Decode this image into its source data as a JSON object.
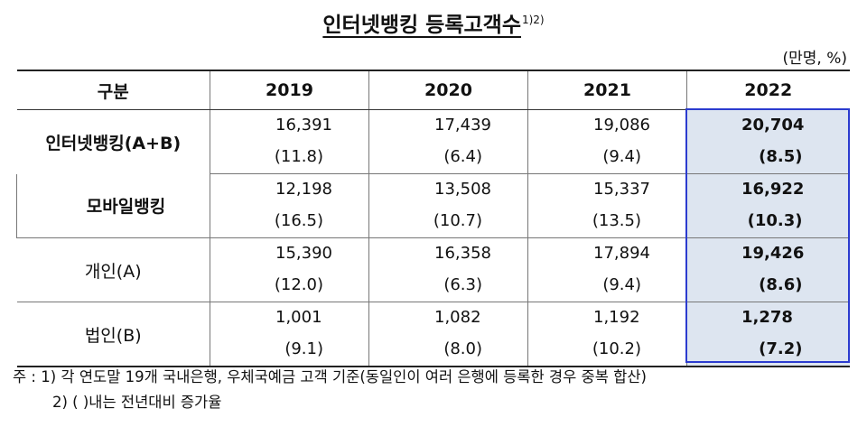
{
  "title": "인터넷뱅킹 등록고객수",
  "title_note": "1)2)",
  "unit": "(만명, %)",
  "header": [
    "구분",
    "2019",
    "2020",
    "2021",
    "2022"
  ],
  "rows": [
    {
      "label": "인터넷뱅킹(A+B)",
      "values": [
        {
          "count": "16,391",
          "rate": "(11.8)"
        },
        {
          "count": "17,439",
          "rate": "(6.4)"
        },
        {
          "count": "19,086",
          "rate": "(9.4)"
        },
        {
          "count": "20,704",
          "rate": "(8.5)"
        }
      ]
    },
    {
      "label": "모바일뱅킹",
      "values": [
        {
          "count": "12,198",
          "rate": "(16.5)"
        },
        {
          "count": "13,508",
          "rate": "(10.7)"
        },
        {
          "count": "15,337",
          "rate": "(13.5)"
        },
        {
          "count": "16,922",
          "rate": "(10.3)"
        }
      ]
    },
    {
      "label": "개인(A)",
      "values": [
        {
          "count": "15,390",
          "rate": "(12.0)"
        },
        {
          "count": "16,358",
          "rate": "(6.3)"
        },
        {
          "count": "17,894",
          "rate": "(9.4)"
        },
        {
          "count": "19,426",
          "rate": "(8.6)"
        }
      ]
    },
    {
      "label": "법인(B)",
      "values": [
        {
          "count": "1,001",
          "rate": "(9.1)"
        },
        {
          "count": "1,082",
          "rate": "(8.0)"
        },
        {
          "count": "1,192",
          "rate": "(10.2)"
        },
        {
          "count": "1,278",
          "rate": "(7.2)"
        }
      ]
    }
  ],
  "notes": [
    "주 : 1) 각 연도말 19개 국내은행, 우체국예금 고객 기준(동일인이 여러 은행에 등록한 경우 중복 합산)",
    "2) (   )내는 전년대비 증가율"
  ],
  "colors": {
    "highlight_fill": "#dde5f0",
    "highlight_border": "#2b3bcf"
  }
}
